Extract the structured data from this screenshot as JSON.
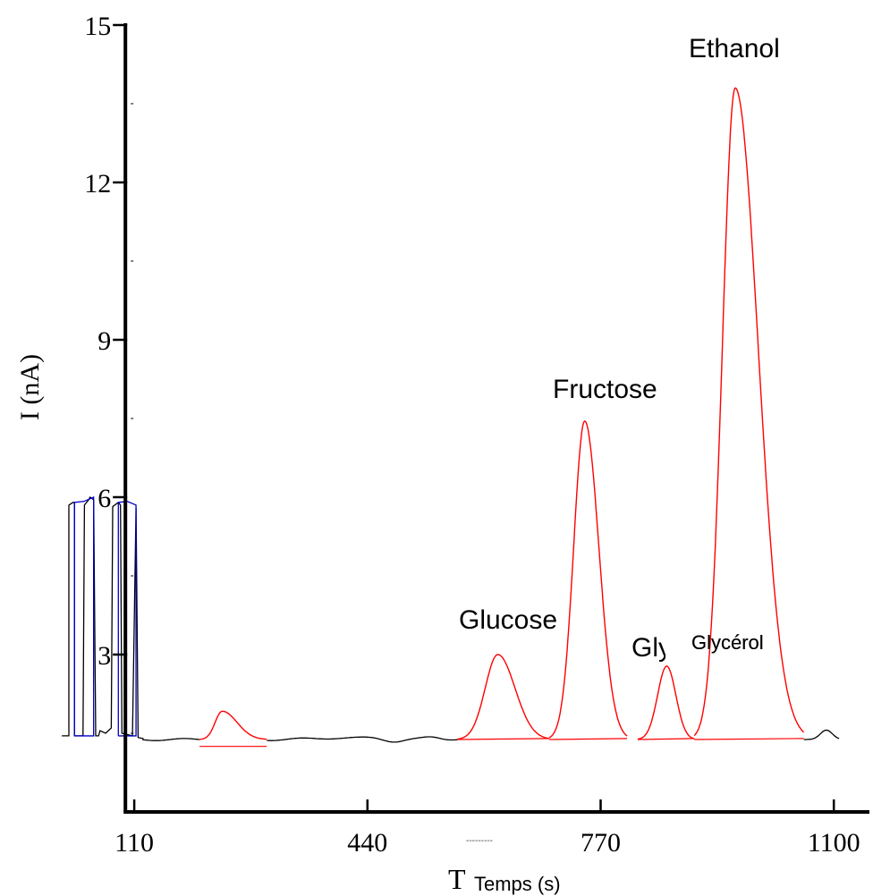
{
  "chart_data": {
    "type": "line",
    "title": "",
    "xlabel": "Temps (s)",
    "xlabel_prefix": "T",
    "ylabel": "I (nA)",
    "xlim": [
      0,
      1110
    ],
    "ylim": [
      0,
      15
    ],
    "x_ticks": [
      110,
      440,
      770,
      1100
    ],
    "y_ticks": [
      3,
      6,
      9,
      12,
      15
    ],
    "y_minor_ticks": [
      1.5,
      4.5,
      7.5,
      10.5,
      13.5
    ],
    "baseline": 1.38,
    "colors": {
      "base": "#000000",
      "injection": "#0000cc",
      "peaks": "#ff0000"
    },
    "peaks": [
      {
        "label": "",
        "t": 237,
        "height": 1.92,
        "start": 205,
        "end": 300
      },
      {
        "label": "Glucose",
        "t": 627,
        "height": 3.0,
        "start": 570,
        "end": 700
      },
      {
        "label": "Fructose",
        "t": 750,
        "height": 7.45,
        "start": 700,
        "end": 810
      },
      {
        "label": "Glycérol",
        "t": 866,
        "height": 2.78,
        "start": 825,
        "end": 905
      },
      {
        "label": "Ethanol",
        "t": 963,
        "height": 13.8,
        "start": 905,
        "end": 1060
      }
    ],
    "overlapping_label_fragment": "Gly",
    "legend_fragment": "---------"
  }
}
